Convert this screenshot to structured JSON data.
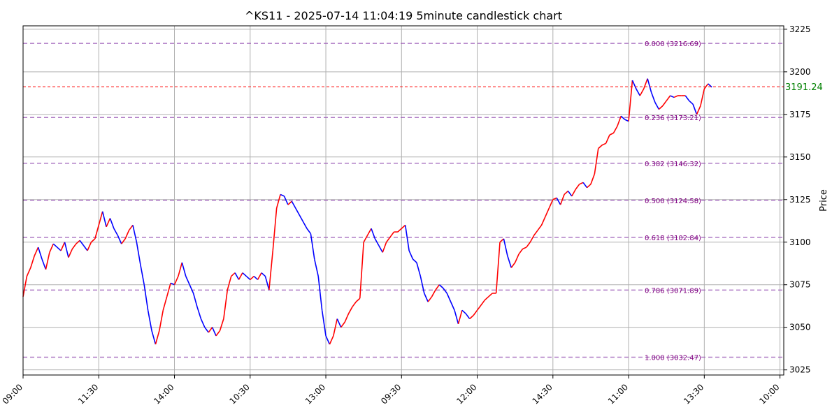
{
  "chart_data": {
    "type": "line",
    "title": "^KS11 - 2025-07-14 11:04:19 5minute candlestick chart",
    "xlabel": "",
    "ylabel": "Price",
    "ylim": [
      3022,
      3227
    ],
    "yticks": [
      3025,
      3050,
      3075,
      3100,
      3125,
      3150,
      3175,
      3200,
      3225
    ],
    "xticks": [
      {
        "index": 0,
        "label": "09:00"
      },
      {
        "index": 20,
        "label": "11:30"
      },
      {
        "index": 40,
        "label": "14:00"
      },
      {
        "index": 60,
        "label": "10:30"
      },
      {
        "index": 80,
        "label": "13:00"
      },
      {
        "index": 100,
        "label": "09:30"
      },
      {
        "index": 120,
        "label": "12:00"
      },
      {
        "index": 140,
        "label": "14:30"
      },
      {
        "index": 160,
        "label": "11:00"
      },
      {
        "index": 180,
        "label": "13:30"
      },
      {
        "index": 200,
        "label": "10:00"
      }
    ],
    "xlim": [
      0,
      201
    ],
    "grid": true,
    "current_price": {
      "value": 3191.24,
      "label": "3191.24",
      "color": "#008000",
      "line_color": "#ff0000"
    },
    "fib_levels": [
      {
        "value": 3216.69,
        "label": "0.000 (3216.69)"
      },
      {
        "value": 3173.21,
        "label": "0.236 (3173.21)"
      },
      {
        "value": 3146.32,
        "label": "0.382 (3146.32)"
      },
      {
        "value": 3124.58,
        "label": "0.500 (3124.58)"
      },
      {
        "value": 3102.84,
        "label": "0.618 (3102.84)"
      },
      {
        "value": 3071.89,
        "label": "0.786 (3071.89)"
      },
      {
        "value": 3032.47,
        "label": "1.000 (3032.47)"
      }
    ],
    "colors": {
      "up": "#ff0000",
      "down": "#0000ff",
      "fib": "#9b59b6",
      "grid": "#b0b0b0"
    },
    "series": [
      {
        "values": [
          3068,
          3080,
          3085,
          3092,
          3097,
          3090,
          3084,
          3094,
          3099,
          3097,
          3095,
          3100,
          3091,
          3096,
          3099,
          3101,
          3098,
          3095,
          3100,
          3102,
          3110,
          3118,
          3109,
          3114,
          3108,
          3104,
          3099,
          3102,
          3107,
          3110,
          3100,
          3087,
          3075,
          3060,
          3048,
          3040,
          3048,
          3060,
          3068,
          3076,
          3075,
          3080,
          3088,
          3080,
          3075,
          3070,
          3062,
          3055,
          3050,
          3047,
          3050,
          3045,
          3048,
          3055,
          3072,
          3080,
          3082,
          3078,
          3082,
          3080,
          3078,
          3080,
          3078,
          3082,
          3080,
          3072,
          3095,
          3120,
          3128,
          3127,
          3122,
          3124,
          3120,
          3116,
          3112,
          3108,
          3105,
          3090,
          3080,
          3060,
          3045,
          3040,
          3045,
          3055,
          3050,
          3053,
          3058,
          3062,
          3065,
          3067,
          3100,
          3104,
          3108,
          3102,
          3098,
          3094,
          3100,
          3103,
          3106,
          3106,
          3108,
          3110,
          3095,
          3090,
          3088,
          3080,
          3070,
          3065,
          3068,
          3072,
          3075,
          3073,
          3070,
          3065,
          3060,
          3052,
          3060,
          3058,
          3055,
          3057,
          3060,
          3063,
          3066,
          3068,
          3070,
          3070,
          3100,
          3102,
          3092,
          3085,
          3088,
          3093,
          3096,
          3097,
          3100,
          3104,
          3107,
          3110,
          3115,
          3120,
          3125,
          3126,
          3122,
          3128,
          3130,
          3127,
          3131,
          3134,
          3135,
          3132,
          3134,
          3140,
          3155,
          3157,
          3158,
          3163,
          3164,
          3168,
          3174,
          3172,
          3171,
          3195,
          3190,
          3186,
          3190,
          3196,
          3188,
          3182,
          3178,
          3180,
          3183,
          3186,
          3185,
          3186,
          3186,
          3186,
          3183,
          3181,
          3175,
          3180,
          3190,
          3193,
          3191
        ]
      }
    ]
  }
}
